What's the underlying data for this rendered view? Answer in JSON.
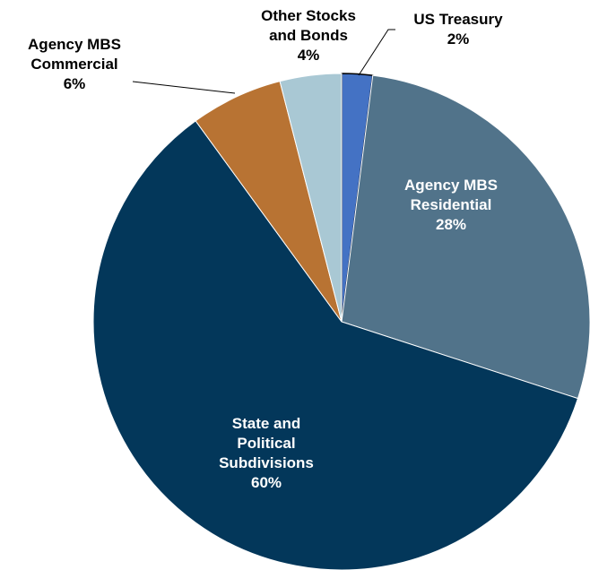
{
  "chart_data": {
    "type": "pie",
    "title": "",
    "start_angle_deg": 0,
    "direction": "clockwise",
    "slices": [
      {
        "label_lines": [
          "US Treasury",
          "2%"
        ],
        "value": 2,
        "color": "#4472c4",
        "label_style": "outside-dark"
      },
      {
        "label_lines": [
          "Agency MBS",
          "Residential",
          "28%"
        ],
        "value": 28,
        "color": "#51738a",
        "label_style": "inside-light"
      },
      {
        "label_lines": [
          "State and",
          "Political",
          "Subdivisions",
          "60%"
        ],
        "value": 60,
        "color": "#03375a",
        "label_style": "inside-light"
      },
      {
        "label_lines": [
          "Agency MBS",
          "Commercial",
          "6%"
        ],
        "value": 6,
        "color": "#b87333",
        "label_style": "outside-dark"
      },
      {
        "label_lines": [
          "Other Stocks",
          "and Bonds",
          "4%"
        ],
        "value": 4,
        "color": "#a9c8d4",
        "label_style": "outside-dark"
      }
    ]
  }
}
